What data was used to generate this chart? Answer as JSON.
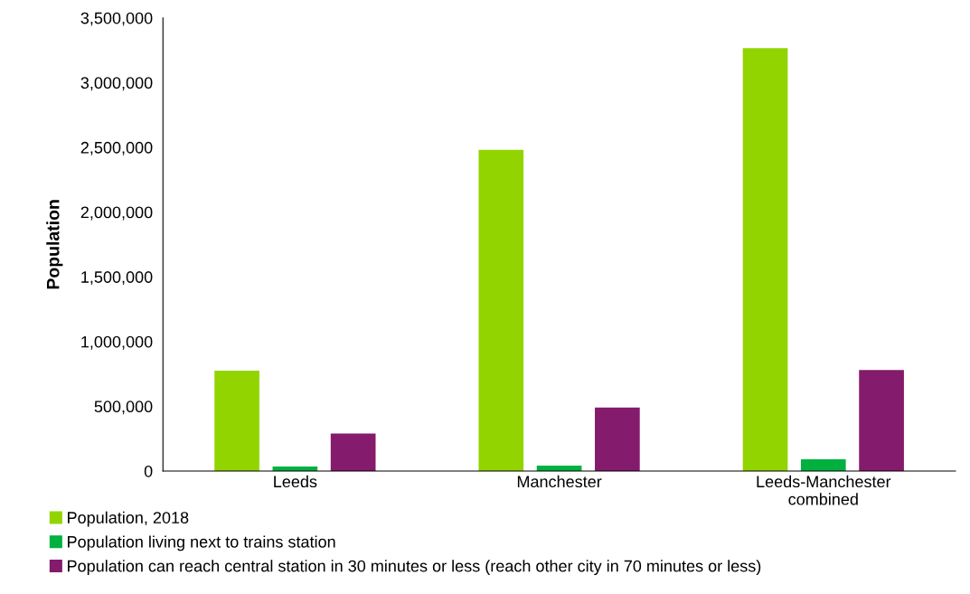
{
  "chart_data": {
    "type": "bar",
    "ylabel": "Population",
    "categories": [
      "Leeds",
      "Manchester",
      "Leeds-Manchester\ncombined"
    ],
    "series": [
      {
        "name": "Population, 2018",
        "color": "#92d400",
        "values": [
          775000,
          2480000,
          3265000
        ]
      },
      {
        "name": "Population living next to trains station",
        "color": "#00b140",
        "values": [
          35000,
          42000,
          90000
        ]
      },
      {
        "name": "Population can reach central station in 30 minutes or less (reach other city in 70 minutes or less)",
        "color": "#841b6c",
        "values": [
          290000,
          490000,
          780000
        ]
      }
    ],
    "ylim": [
      0,
      3500000
    ],
    "yticks": [
      {
        "value": 0,
        "label": "0"
      },
      {
        "value": 500000,
        "label": "500,000"
      },
      {
        "value": 1000000,
        "label": "1,000,000"
      },
      {
        "value": 1500000,
        "label": "1,500,000"
      },
      {
        "value": 2000000,
        "label": "2,000,000"
      },
      {
        "value": 2500000,
        "label": "2,500,000"
      },
      {
        "value": 3000000,
        "label": "3,000,000"
      },
      {
        "value": 3500000,
        "label": "3,500,000"
      }
    ],
    "grid": false,
    "legend": "bottom"
  }
}
